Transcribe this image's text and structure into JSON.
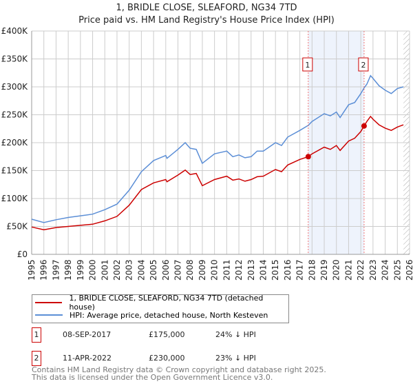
{
  "chart_data": {
    "type": "line",
    "title": "1, BRIDLE CLOSE, SLEAFORD, NG34 7TD",
    "subtitle": "Price paid vs. HM Land Registry's House Price Index (HPI)",
    "xlim": [
      1995,
      2026
    ],
    "ylim": [
      0,
      400000
    ],
    "xticks": [
      "1995",
      "1996",
      "1997",
      "1998",
      "1999",
      "2000",
      "2001",
      "2002",
      "2003",
      "2004",
      "2005",
      "2006",
      "2007",
      "2008",
      "2009",
      "2010",
      "2011",
      "2012",
      "2013",
      "2014",
      "2015",
      "2016",
      "2017",
      "2018",
      "2019",
      "2020",
      "2021",
      "2022",
      "2023",
      "2024",
      "2025",
      "2026"
    ],
    "yticks": [
      {
        "v": 0,
        "l": "£0"
      },
      {
        "v": 50000,
        "l": "£50K"
      },
      {
        "v": 100000,
        "l": "£100K"
      },
      {
        "v": 150000,
        "l": "£150K"
      },
      {
        "v": 200000,
        "l": "£200K"
      },
      {
        "v": 250000,
        "l": "£250K"
      },
      {
        "v": 300000,
        "l": "£300K"
      },
      {
        "v": 350000,
        "l": "£350K"
      },
      {
        "v": 400000,
        "l": "£400K"
      }
    ],
    "grid": true,
    "series": [
      {
        "name": "1, BRIDLE CLOSE, SLEAFORD, NG34 7TD (detached house)",
        "color": "#cc0000",
        "x": [
          1995,
          1996,
          1997,
          1998,
          1999,
          2000,
          2001,
          2002,
          2003,
          2004,
          2005,
          2006,
          2006.1,
          2007,
          2007.6,
          2008,
          2008.5,
          2009,
          2010,
          2011,
          2011.5,
          2012,
          2012.5,
          2013,
          2013.5,
          2014,
          2015,
          2015.5,
          2016,
          2017,
          2017.69,
          2018,
          2019,
          2019.5,
          2020,
          2020.3,
          2021,
          2021.5,
          2022,
          2022.27,
          2022.5,
          2022.8,
          2023,
          2023.5,
          2024,
          2024.5,
          2025,
          2025.5
        ],
        "y": [
          49,
          44,
          48,
          50,
          52,
          54,
          60,
          68,
          88,
          116,
          128,
          134,
          130,
          142,
          151,
          143,
          145,
          123,
          134,
          140,
          133,
          135,
          131,
          134,
          139,
          140,
          152,
          148,
          160,
          170,
          175,
          180,
          192,
          188,
          195,
          186,
          203,
          208,
          220,
          230,
          238,
          247,
          242,
          232,
          226,
          222,
          228,
          232
        ]
      },
      {
        "name": "HPI: Average price, detached house, North Kesteven",
        "color": "#5b8ed6",
        "x": [
          1995,
          1996,
          1997,
          1998,
          1999,
          2000,
          2001,
          2002,
          2003,
          2004,
          2005,
          2006,
          2006.1,
          2007,
          2007.6,
          2008,
          2008.5,
          2009,
          2010,
          2011,
          2011.5,
          2012,
          2012.5,
          2013,
          2013.5,
          2014,
          2015,
          2015.5,
          2016,
          2017,
          2017.69,
          2018,
          2019,
          2019.5,
          2020,
          2020.3,
          2021,
          2021.5,
          2022,
          2022.27,
          2022.5,
          2022.8,
          2023,
          2023.5,
          2024,
          2024.5,
          2025,
          2025.5
        ],
        "y": [
          63,
          57,
          62,
          66,
          69,
          72,
          80,
          90,
          115,
          148,
          168,
          177,
          172,
          188,
          200,
          190,
          188,
          163,
          180,
          185,
          175,
          178,
          173,
          175,
          185,
          185,
          200,
          195,
          210,
          222,
          231,
          238,
          252,
          248,
          255,
          245,
          268,
          272,
          288,
          298,
          305,
          320,
          315,
          302,
          294,
          288,
          297,
          300
        ]
      }
    ],
    "y_unit": "thousands GBP",
    "sales": [
      {
        "n": "1",
        "x": 2017.69,
        "y": 175
      },
      {
        "n": "2",
        "x": 2022.27,
        "y": 230
      }
    ],
    "legend_position": "below"
  },
  "table": [
    {
      "n": "1",
      "date": "08-SEP-2017",
      "price": "£175,000",
      "hpi": "24% ↓ HPI"
    },
    {
      "n": "2",
      "date": "11-APR-2022",
      "price": "£230,000",
      "hpi": "23% ↓ HPI"
    }
  ],
  "footer": [
    "Contains HM Land Registry data © Crown copyright and database right 2025.",
    "This data is licensed under the Open Government Licence v3.0."
  ]
}
